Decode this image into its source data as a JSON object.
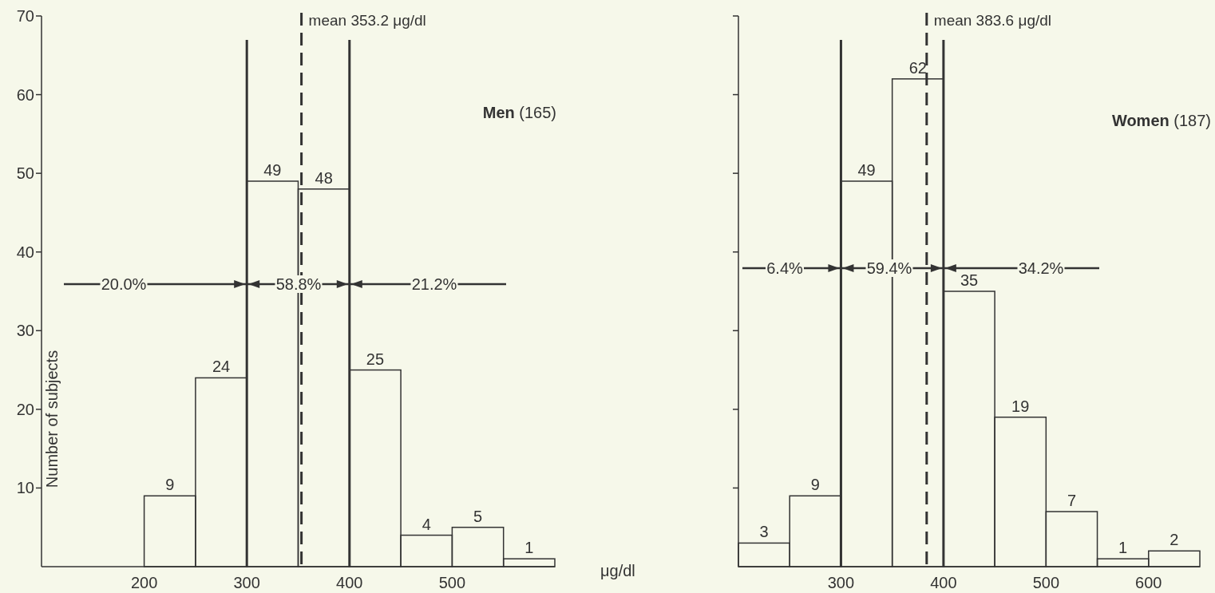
{
  "chart_data": [
    {
      "type": "histogram",
      "title": "Men (165)",
      "xlabel": "μg/dl",
      "ylabel": "Number of subjects",
      "bins": [
        200,
        250,
        300,
        350,
        400,
        450,
        500,
        550,
        600
      ],
      "values": [
        9,
        24,
        49,
        48,
        25,
        4,
        5,
        1
      ],
      "color": "#333333",
      "xlim": [
        100,
        600
      ],
      "xticks": [
        200,
        300,
        400,
        500
      ],
      "ylim": [
        0,
        70
      ],
      "yticks": [
        10,
        20,
        30,
        40,
        50,
        60,
        70
      ],
      "data_labels": true,
      "ref_lines": [
        {
          "axis": "x",
          "value": 300,
          "line_style": "solid"
        },
        {
          "axis": "x",
          "value": 400,
          "line_style": "solid"
        },
        {
          "axis": "x",
          "value": 353.2,
          "label": "mean 353.2 μg/dl",
          "line_style": "dashed"
        }
      ],
      "annotations": [
        "20.0%",
        "58.8%",
        "21.2%"
      ]
    },
    {
      "type": "histogram",
      "title": "Women (187)",
      "bins": [
        200,
        250,
        300,
        350,
        400,
        450,
        500,
        550,
        600,
        650
      ],
      "values": [
        3,
        9,
        49,
        62,
        35,
        19,
        7,
        1,
        2
      ],
      "color": "#333333",
      "xlim": [
        200,
        650
      ],
      "xticks": [
        300,
        400,
        500,
        600
      ],
      "ylim": [
        0,
        70
      ],
      "yticks": [
        {
          "value": 10,
          "label": null
        },
        {
          "value": 20,
          "label": null
        },
        {
          "value": 30,
          "label": null
        },
        {
          "value": 40,
          "label": null
        },
        {
          "value": 50,
          "label": null
        },
        {
          "value": 60,
          "label": null
        },
        {
          "value": 70,
          "label": null
        }
      ],
      "tick_labels": "x",
      "data_labels": true,
      "ref_lines": [
        {
          "axis": "x",
          "value": 300,
          "line_style": "solid"
        },
        {
          "axis": "x",
          "value": 400,
          "line_style": "solid"
        },
        {
          "axis": "x",
          "value": 383.6,
          "label": "mean 383.6 μg/dl",
          "line_style": "dashed"
        }
      ],
      "annotations": [
        "6.4%",
        "59.4%",
        "34.2%"
      ]
    }
  ]
}
